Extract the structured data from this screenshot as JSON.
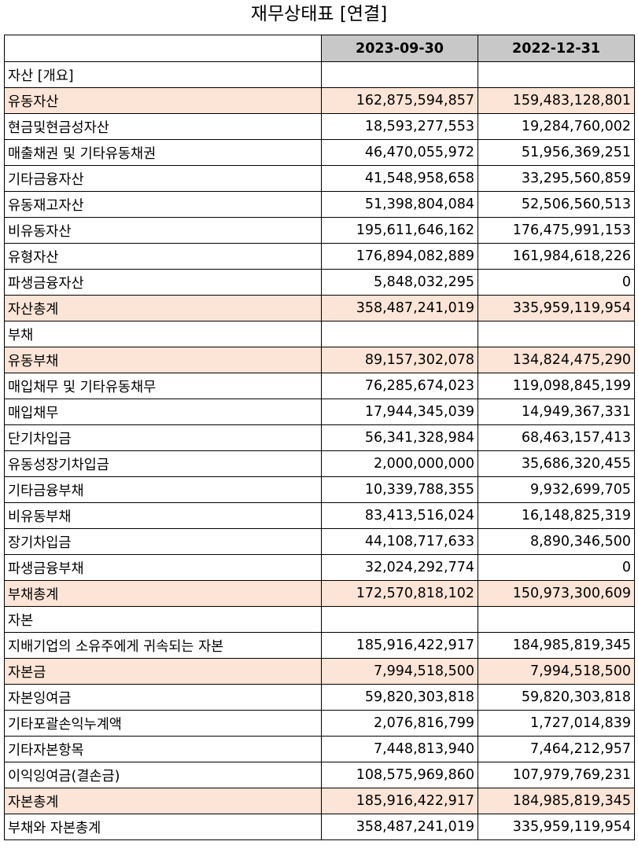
{
  "title": "재무상태표 [연결]",
  "columns": [
    "2023-09-30",
    "2022-12-31"
  ],
  "highlight_color": "#fce4d6",
  "header_color": "#c8c8c8",
  "rows": [
    {
      "label": "자산 [개요]",
      "level": 0,
      "highlight": false,
      "v1": "",
      "v2": ""
    },
    {
      "label": "유동자산",
      "level": 1,
      "highlight": true,
      "v1": "162,875,594,857",
      "v2": "159,483,128,801"
    },
    {
      "label": "현금및현금성자산",
      "level": 2,
      "highlight": false,
      "v1": "18,593,277,553",
      "v2": "19,284,760,002"
    },
    {
      "label": "매출채권 및 기타유동채권",
      "level": 2,
      "highlight": false,
      "v1": "46,470,055,972",
      "v2": "51,956,369,251"
    },
    {
      "label": "기타금융자산",
      "level": 2,
      "highlight": false,
      "v1": "41,548,958,658",
      "v2": "33,295,560,859"
    },
    {
      "label": "유동재고자산",
      "level": 2,
      "highlight": false,
      "v1": "51,398,804,084",
      "v2": "52,506,560,513"
    },
    {
      "label": "비유동자산",
      "level": 1,
      "highlight": false,
      "v1": "195,611,646,162",
      "v2": "176,475,991,153"
    },
    {
      "label": "유형자산",
      "level": 2,
      "highlight": false,
      "v1": "176,894,082,889",
      "v2": "161,984,618,226"
    },
    {
      "label": "파생금융자산",
      "level": 2,
      "highlight": false,
      "v1": "5,848,032,295",
      "v2": "0"
    },
    {
      "label": "자산총계",
      "level": 1,
      "highlight": true,
      "v1": "358,487,241,019",
      "v2": "335,959,119,954"
    },
    {
      "label": "부채",
      "level": 0,
      "highlight": false,
      "v1": "",
      "v2": ""
    },
    {
      "label": "유동부채",
      "level": 1,
      "highlight": true,
      "v1": "89,157,302,078",
      "v2": "134,824,475,290"
    },
    {
      "label": "매입채무 및 기타유동채무",
      "level": 2,
      "highlight": false,
      "v1": "76,285,674,023",
      "v2": "119,098,845,199"
    },
    {
      "label": "매입채무",
      "level": 3,
      "highlight": false,
      "v1": "17,944,345,039",
      "v2": "14,949,367,331"
    },
    {
      "label": "단기차입금",
      "level": 3,
      "highlight": false,
      "v1": "56,341,328,984",
      "v2": "68,463,157,413"
    },
    {
      "label": "유동성장기차입금",
      "level": 3,
      "highlight": false,
      "v1": "2,000,000,000",
      "v2": "35,686,320,455"
    },
    {
      "label": "기타금융부채",
      "level": 2,
      "highlight": false,
      "v1": "10,339,788,355",
      "v2": "9,932,699,705"
    },
    {
      "label": "비유동부채",
      "level": 1,
      "highlight": false,
      "v1": "83,413,516,024",
      "v2": "16,148,825,319"
    },
    {
      "label": "장기차입금",
      "level": 2,
      "highlight": false,
      "v1": "44,108,717,633",
      "v2": "8,890,346,500"
    },
    {
      "label": "파생금융부채",
      "level": 2,
      "highlight": false,
      "v1": "32,024,292,774",
      "v2": "0"
    },
    {
      "label": "부채총계",
      "level": 1,
      "highlight": true,
      "v1": "172,570,818,102",
      "v2": "150,973,300,609"
    },
    {
      "label": "자본",
      "level": 0,
      "highlight": false,
      "v1": "",
      "v2": ""
    },
    {
      "label": "지배기업의 소유주에게 귀속되는 자본",
      "level": 1,
      "highlight": false,
      "v1": "185,916,422,917",
      "v2": "184,985,819,345"
    },
    {
      "label": "자본금",
      "level": 2,
      "highlight": true,
      "v1": "7,994,518,500",
      "v2": "7,994,518,500"
    },
    {
      "label": "자본잉여금",
      "level": 2,
      "highlight": false,
      "v1": "59,820,303,818",
      "v2": "59,820,303,818"
    },
    {
      "label": "기타포괄손익누계액",
      "level": 2,
      "highlight": false,
      "v1": "2,076,816,799",
      "v2": "1,727,014,839"
    },
    {
      "label": "기타자본항목",
      "level": 2,
      "highlight": false,
      "v1": "7,448,813,940",
      "v2": "7,464,212,957"
    },
    {
      "label": "이익잉여금(결손금)",
      "level": 2,
      "highlight": false,
      "v1": "108,575,969,860",
      "v2": "107,979,769,231"
    },
    {
      "label": "자본총계",
      "level": 1,
      "highlight": true,
      "v1": "185,916,422,917",
      "v2": "184,985,819,345"
    },
    {
      "label": "부채와 자본총계",
      "level": 0,
      "highlight": false,
      "v1": "358,487,241,019",
      "v2": "335,959,119,954"
    }
  ]
}
